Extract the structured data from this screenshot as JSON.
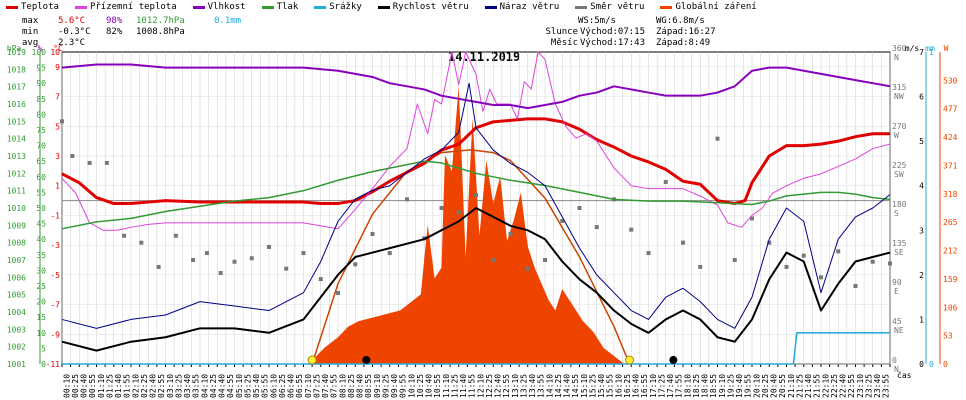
{
  "legend": [
    {
      "label": "Teplota",
      "color": "#e00000"
    },
    {
      "label": "Přízemní teplota",
      "color": "#dd44dd"
    },
    {
      "label": "Vlhkost",
      "color": "#8800bb"
    },
    {
      "label": "Tlak",
      "color": "#339933"
    },
    {
      "label": "Srážky",
      "color": "#22aadd"
    },
    {
      "label": "Rychlost větru",
      "color": "#000000"
    },
    {
      "label": "Náraz větru",
      "color": "#000088"
    },
    {
      "label": "Směr větru",
      "color": "#777777"
    },
    {
      "label": "Globální záření",
      "color": "#ee4400"
    }
  ],
  "stats": {
    "max": {
      "label": "max",
      "temp": "5.6°C",
      "hum": "98%",
      "press": "1012.7hPa",
      "rain": "0.1mm"
    },
    "min": {
      "label": "min",
      "temp": "-0.3°C",
      "hum": "82%",
      "press": "1008.8hPa"
    },
    "avg": {
      "label": "avg",
      "temp": "2.3°C"
    }
  },
  "sun": {
    "ws": "WS:5m/s",
    "wg": "WG:6.8m/s",
    "slunce": "Slunce",
    "slunce_vychod": "Východ:07:15",
    "slunce_zapad": "Západ:16:27",
    "mesic": "Měsíc",
    "mesic_vychod": "Východ:17:43",
    "mesic_zapad": "Západ:8:49"
  },
  "chart_data": {
    "type": "line",
    "title": "14.11.2019",
    "xlabel": "čas",
    "x_ticks": [
      "00:10",
      "00:25",
      "00:40",
      "00:55",
      "01:10",
      "01:25",
      "01:40",
      "01:55",
      "02:10",
      "02:25",
      "02:40",
      "02:55",
      "03:10",
      "03:25",
      "03:40",
      "03:55",
      "04:10",
      "04:25",
      "04:40",
      "04:55",
      "05:10",
      "05:25",
      "05:40",
      "05:55",
      "06:10",
      "06:25",
      "06:40",
      "06:55",
      "07:10",
      "07:25",
      "07:40",
      "07:55",
      "08:10",
      "08:25",
      "08:40",
      "08:55",
      "09:10",
      "09:25",
      "09:40",
      "09:55",
      "10:10",
      "10:25",
      "10:40",
      "10:55",
      "11:10",
      "11:25",
      "11:40",
      "11:55",
      "12:10",
      "12:25",
      "12:40",
      "12:55",
      "13:10",
      "13:25",
      "13:40",
      "13:55",
      "14:10",
      "14:25",
      "14:40",
      "14:55",
      "15:10",
      "15:25",
      "15:40",
      "15:55",
      "16:10",
      "16:25",
      "16:40",
      "16:55",
      "17:10",
      "17:25",
      "17:40",
      "17:55",
      "18:10",
      "18:25",
      "18:40",
      "18:55",
      "19:10",
      "19:25",
      "19:40",
      "19:55",
      "20:10",
      "20:25",
      "20:40",
      "20:55",
      "21:10",
      "21:25",
      "21:40",
      "21:55",
      "22:10",
      "22:25",
      "22:40",
      "22:55",
      "23:10",
      "23:25",
      "23:40",
      "23:55"
    ],
    "axes": {
      "pressure": {
        "label": "hPa",
        "min": 1001,
        "max": 1019,
        "ticks": [
          "1019",
          "1018",
          "1017",
          "1016",
          "1015",
          "1014",
          "1013",
          "1012",
          "1011",
          "1010",
          "1009",
          "1008",
          "1007",
          "1006",
          "1005",
          "1004",
          "1003",
          "1002",
          "1001"
        ]
      },
      "humidity": {
        "label": "%",
        "min": 0,
        "max": 100,
        "ticks": [
          "100",
          "95",
          "90",
          "85",
          "80",
          "75",
          "70",
          "65",
          "60",
          "55",
          "50",
          "45",
          "40",
          "35",
          "30",
          "25",
          "20",
          "15",
          "10",
          "5",
          "0"
        ]
      },
      "temperature": {
        "label": "°C",
        "min": -11,
        "max": 10,
        "ticks": [
          "10",
          "9",
          "7",
          "5",
          "3",
          "1",
          "-1",
          "-3",
          "-5",
          "-7",
          "-9",
          "-11"
        ]
      },
      "direction": {
        "min": 0,
        "max": 360,
        "ticks": [
          {
            "v": 360,
            "d": "N"
          },
          {
            "v": 315,
            "d": "NW"
          },
          {
            "v": 270,
            "d": "W"
          },
          {
            "v": 225,
            "d": "SW"
          },
          {
            "v": 180,
            "d": "S"
          },
          {
            "v": 135,
            "d": "SE"
          },
          {
            "v": 90,
            "d": "E"
          },
          {
            "v": 45,
            "d": "NE"
          },
          {
            "v": 0,
            "d": "N"
          }
        ]
      },
      "wind": {
        "label": "m/s",
        "min": 0,
        "max": 7,
        "ticks": [
          "7",
          "6",
          "5",
          "4",
          "3",
          "2",
          "1",
          "0"
        ]
      },
      "rain": {
        "label": "mm",
        "min": 0,
        "max": 1,
        "ticks": [
          "1",
          "0"
        ]
      },
      "radiation": {
        "label": "W",
        "min": 0,
        "max": 583,
        "ticks": [
          "530",
          "477",
          "424",
          "371",
          "318",
          "265",
          "212",
          "159",
          "106",
          "53",
          "0"
        ]
      }
    },
    "series": [
      {
        "name": "Teplota",
        "axis": "temperature",
        "color": "#e00000",
        "x": [
          0,
          0.5,
          1,
          1.5,
          2,
          2.5,
          3,
          4,
          5,
          6,
          7,
          7.5,
          8,
          8.5,
          9,
          9.5,
          10,
          10.5,
          11,
          11.5,
          12,
          12.5,
          13,
          13.5,
          14,
          14.5,
          15,
          15.5,
          16,
          16.5,
          17,
          17.5,
          18,
          18.5,
          19,
          19.5,
          19.8,
          20,
          20.5,
          21,
          21.5,
          22,
          22.5,
          23,
          23.5,
          24
        ],
        "y": [
          1.8,
          1.2,
          0.2,
          -0.2,
          -0.2,
          -0.1,
          0,
          -0.1,
          -0.1,
          -0.1,
          -0.1,
          -0.2,
          -0.2,
          0,
          0.6,
          1.3,
          1.9,
          2.5,
          3.4,
          3.8,
          4.9,
          5.3,
          5.4,
          5.5,
          5.5,
          5.3,
          4.8,
          4.1,
          3.6,
          3.0,
          2.6,
          2.1,
          1.3,
          1.1,
          0,
          -0.2,
          0,
          1.2,
          3.0,
          3.7,
          3.7,
          3.8,
          4.0,
          4.3,
          4.5,
          4.5
        ]
      },
      {
        "name": "Přízemní teplota",
        "axis": "temperature",
        "color": "#dd44dd",
        "x": [
          0,
          0.4,
          0.8,
          1.2,
          1.6,
          2,
          2.5,
          3,
          3.5,
          4,
          5,
          6,
          7,
          7.5,
          8,
          8.5,
          9,
          9.5,
          10,
          10.3,
          10.6,
          10.8,
          11,
          11.2,
          11.3,
          11.5,
          11.7,
          11.9,
          12,
          12.2,
          12.4,
          12.6,
          12.8,
          13,
          13.2,
          13.4,
          13.6,
          13.8,
          14,
          14.3,
          14.6,
          14.9,
          15.2,
          15.5,
          16,
          16.5,
          17,
          17.5,
          18,
          18.5,
          19,
          19.3,
          19.7,
          20,
          20.3,
          20.6,
          21,
          21.5,
          22,
          22.5,
          23,
          23.5,
          24
        ],
        "y": [
          1.5,
          0.5,
          -1.5,
          -2,
          -2,
          -1.8,
          -1.6,
          -1.5,
          -1.5,
          -1.5,
          -1.5,
          -1.5,
          -1.5,
          -1.7,
          -1.9,
          -0.6,
          0.8,
          2.3,
          3.5,
          6.5,
          4.5,
          6.8,
          6.5,
          8.8,
          10,
          7.8,
          10,
          9,
          8.5,
          6.0,
          7.5,
          6.5,
          6.5,
          6.5,
          5.5,
          8.0,
          7.5,
          10,
          9.5,
          6.5,
          5,
          4.2,
          4.5,
          4,
          2.2,
          1.0,
          0.8,
          0.8,
          0.8,
          0.3,
          -0.3,
          -1.5,
          -1.8,
          -1.0,
          -0.5,
          0.5,
          1.0,
          1.5,
          1.8,
          2.3,
          2.8,
          3.5,
          3.8
        ]
      },
      {
        "name": "Vlhkost",
        "axis": "humidity",
        "color": "#8800bb",
        "x": [
          0,
          1,
          2,
          3,
          4,
          5,
          6,
          7,
          8,
          8.5,
          9,
          9.5,
          10,
          10.5,
          11,
          11.5,
          12,
          12.5,
          13,
          13.5,
          14,
          14.5,
          15,
          15.5,
          16,
          16.5,
          17,
          17.5,
          18,
          18.5,
          19,
          19.5,
          20,
          20.5,
          21,
          21.5,
          22,
          22.5,
          23,
          23.5,
          24
        ],
        "y": [
          95,
          96,
          96,
          95,
          95,
          95,
          95,
          95,
          94,
          93,
          92,
          90,
          89,
          88,
          86,
          85,
          84,
          83,
          83,
          82,
          83,
          84,
          86,
          87,
          89,
          88,
          87,
          86,
          86,
          86,
          87,
          89,
          94,
          95,
          95,
          94,
          93,
          92,
          91,
          90,
          89
        ]
      },
      {
        "name": "Tlak",
        "axis": "pressure",
        "color": "#339933",
        "x": [
          0,
          1,
          2,
          3,
          4,
          5,
          6,
          7,
          8,
          9,
          10,
          10.5,
          11,
          11.5,
          12,
          12.5,
          13,
          14,
          15,
          16,
          17,
          18,
          19,
          20,
          20.5,
          21,
          21.5,
          22,
          22.5,
          23,
          23.5,
          24
        ],
        "y": [
          1008.8,
          1009.2,
          1009.4,
          1009.8,
          1010.1,
          1010.4,
          1010.6,
          1011.0,
          1011.6,
          1012.1,
          1012.5,
          1012.7,
          1012.6,
          1012.3,
          1012.0,
          1011.8,
          1011.6,
          1011.3,
          1010.9,
          1010.5,
          1010.4,
          1010.4,
          1010.3,
          1010.2,
          1010.4,
          1010.7,
          1010.8,
          1010.9,
          1010.9,
          1010.8,
          1010.6,
          1010.5
        ]
      },
      {
        "name": "Srážky",
        "axis": "rain",
        "color": "#22aadd",
        "x": [
          0,
          21.2,
          21.3,
          24
        ],
        "y": [
          0,
          0,
          0.1,
          0.1
        ]
      },
      {
        "name": "Rychlost větru",
        "axis": "wind",
        "color": "#000000",
        "x": [
          0,
          1,
          2,
          3,
          4,
          5,
          6,
          7,
          7.5,
          8,
          8.5,
          9,
          9.5,
          10,
          10.5,
          11,
          11.5,
          12,
          12.5,
          13,
          13.5,
          14,
          14.5,
          15,
          15.5,
          16,
          16.5,
          17,
          17.5,
          18,
          18.5,
          19,
          19.5,
          20,
          20.5,
          21,
          21.5,
          22,
          22.5,
          23,
          23.5,
          24
        ],
        "y": [
          0.5,
          0.3,
          0.5,
          0.6,
          0.8,
          0.8,
          0.7,
          1.0,
          1.5,
          2.0,
          2.4,
          2.5,
          2.6,
          2.7,
          2.8,
          3.0,
          3.2,
          3.5,
          3.3,
          3.1,
          3.0,
          2.8,
          2.3,
          1.9,
          1.6,
          1.2,
          0.9,
          0.7,
          1.0,
          1.2,
          1.0,
          0.6,
          0.5,
          1.0,
          1.9,
          2.5,
          2.3,
          1.2,
          1.8,
          2.3,
          2.4,
          2.5
        ]
      },
      {
        "name": "Náraz větru",
        "axis": "wind",
        "color": "#000088",
        "x": [
          0,
          1,
          2,
          3,
          4,
          5,
          6,
          7,
          7.5,
          8,
          8.5,
          9,
          9.5,
          10,
          10.5,
          11,
          11.5,
          11.8,
          12,
          12.5,
          13,
          13.5,
          14,
          14.5,
          15,
          15.5,
          16,
          16.5,
          17,
          17.5,
          18,
          18.5,
          19,
          19.5,
          20,
          20.5,
          21,
          21.5,
          22,
          22.5,
          23,
          23.5,
          24
        ],
        "y": [
          1.0,
          0.8,
          1.0,
          1.1,
          1.4,
          1.3,
          1.2,
          1.6,
          2.3,
          3.2,
          3.7,
          3.9,
          4.0,
          4.3,
          4.6,
          4.8,
          5.2,
          6.3,
          5.3,
          4.8,
          4.5,
          4.3,
          4.0,
          3.3,
          2.6,
          2.0,
          1.6,
          1.2,
          1.0,
          1.5,
          1.7,
          1.4,
          1.0,
          0.8,
          1.5,
          2.8,
          3.5,
          3.2,
          1.6,
          2.8,
          3.3,
          3.5,
          3.8
        ]
      }
    ],
    "wind_direction": {
      "axis": "direction",
      "color": "#777777",
      "x": [
        0,
        0.3,
        0.8,
        1.3,
        1.8,
        2.3,
        2.8,
        3.3,
        3.8,
        4.2,
        4.6,
        5,
        5.5,
        6,
        6.5,
        7,
        7.5,
        8,
        8.5,
        9,
        9.5,
        10,
        10.5,
        11,
        11.5,
        12,
        12.5,
        13,
        13.5,
        14,
        14.5,
        15,
        15.5,
        16,
        16.5,
        17,
        17.5,
        18,
        18.5,
        19,
        19.5,
        20,
        20.5,
        21,
        21.5,
        22,
        22.5,
        23,
        23.5,
        24
      ],
      "y": [
        280,
        240,
        232,
        232,
        148,
        140,
        112,
        148,
        120,
        128,
        105,
        118,
        122,
        135,
        110,
        128,
        98,
        82,
        115,
        150,
        128,
        190,
        145,
        180,
        175,
        195,
        120,
        150,
        110,
        120,
        165,
        180,
        158,
        190,
        155,
        128,
        210,
        140,
        112,
        260,
        120,
        168,
        140,
        112,
        125,
        100,
        130,
        90,
        118,
        116
      ]
    },
    "radiation": {
      "axis": "radiation",
      "color": "#ee4400",
      "x": [
        7.3,
        7.6,
        8,
        8.3,
        8.6,
        8.9,
        9.2,
        9.5,
        9.8,
        10.1,
        10.4,
        10.6,
        10.8,
        11,
        11.1,
        11.3,
        11.5,
        11.7,
        11.9,
        12.1,
        12.3,
        12.5,
        12.7,
        12.9,
        13.1,
        13.3,
        13.5,
        13.7,
        13.9,
        14.1,
        14.3,
        14.5,
        14.8,
        15.1,
        15.4,
        15.7,
        16,
        16.3
      ],
      "y": [
        10,
        30,
        50,
        70,
        80,
        85,
        90,
        95,
        100,
        115,
        130,
        260,
        160,
        180,
        390,
        360,
        520,
        200,
        460,
        240,
        380,
        300,
        350,
        230,
        270,
        320,
        220,
        180,
        150,
        120,
        100,
        140,
        110,
        80,
        60,
        30,
        15,
        0
      ]
    },
    "clear_sky_curve": {
      "axis": "radiation",
      "color": "#cc4400",
      "x": [
        7.25,
        8,
        9,
        10,
        11,
        11.85,
        12.5,
        13,
        14,
        15,
        16,
        16.45
      ],
      "y": [
        0,
        150,
        280,
        360,
        395,
        400,
        395,
        380,
        310,
        200,
        70,
        0
      ]
    }
  }
}
